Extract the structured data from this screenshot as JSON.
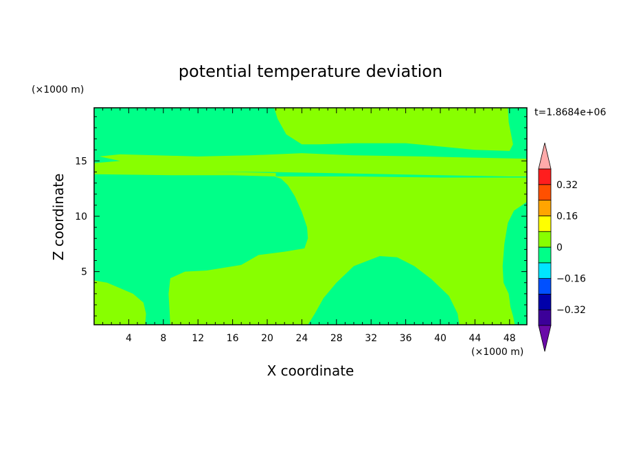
{
  "chart_data": {
    "type": "heatmap",
    "title": "potential temperature deviation",
    "xlabel": "X coordinate",
    "ylabel": "Z coordinate",
    "x_unit": "(×1000 m)",
    "y_unit": "(×1000 m)",
    "time_label": "t=1.8684e+06",
    "xlim": [
      0,
      50
    ],
    "ylim": [
      0.2,
      19.8
    ],
    "x_ticks": [
      4,
      8,
      12,
      16,
      20,
      24,
      28,
      32,
      36,
      40,
      44,
      48
    ],
    "y_ticks": [
      5,
      10,
      15
    ],
    "colorbar": {
      "levels": [
        -0.4,
        -0.32,
        -0.24,
        -0.16,
        -0.08,
        0,
        0.08,
        0.16,
        0.24,
        0.32,
        0.4
      ],
      "colors": [
        "#3c0099",
        "#0000aa",
        "#0050ff",
        "#00e5ff",
        "#00ff88",
        "#88ff00",
        "#ffff00",
        "#ffa500",
        "#ff5000",
        "#ff1e1e"
      ],
      "under_color": "#6a0aa8",
      "over_color": "#ffaaaa",
      "labels": [
        {
          "value": 0.32,
          "text": "0.32"
        },
        {
          "value": 0.16,
          "text": "0.16"
        },
        {
          "value": 0,
          "text": "0"
        },
        {
          "value": -0.16,
          "text": "−0.16"
        },
        {
          "value": -0.32,
          "text": "−0.32"
        }
      ]
    },
    "field": {
      "background_level": [
        -0.08,
        0
      ],
      "regions": [
        {
          "level": [
            0,
            0.08
          ],
          "outline": [
            [
              20.8,
              19.8
            ],
            [
              21.2,
              18.8
            ],
            [
              22.2,
              17.4
            ],
            [
              24,
              16.5
            ],
            [
              26,
              16.5
            ],
            [
              30,
              16.6
            ],
            [
              36,
              16.6
            ],
            [
              40,
              16.3
            ],
            [
              44,
              16
            ],
            [
              48,
              15.9
            ],
            [
              48.4,
              16.5
            ],
            [
              48.2,
              17.3
            ],
            [
              47.9,
              18.5
            ],
            [
              47.8,
              19.8
            ]
          ]
        },
        {
          "level": [
            0,
            0.08
          ],
          "outline": [
            [
              0,
              14.1
            ],
            [
              20,
              14
            ],
            [
              34,
              13.8
            ],
            [
              40,
              13.7
            ],
            [
              48,
              13.6
            ],
            [
              50,
              13.6
            ],
            [
              50,
              15.2
            ],
            [
              44,
              15.3
            ],
            [
              38,
              15.4
            ],
            [
              30,
              15.5
            ],
            [
              24,
              15.7
            ],
            [
              18,
              15.5
            ],
            [
              12,
              15.4
            ],
            [
              3,
              15.6
            ],
            [
              0.6,
              15.4
            ],
            [
              3,
              15
            ],
            [
              0,
              14.8
            ]
          ]
        },
        {
          "level": [
            0,
            0.08
          ],
          "outline": [
            [
              20.8,
              13.6
            ],
            [
              21.6,
              13.4
            ],
            [
              22.4,
              12.8
            ],
            [
              23.2,
              11.8
            ],
            [
              24,
              10.4
            ],
            [
              24.6,
              9
            ],
            [
              24.7,
              8
            ],
            [
              24.3,
              7.1
            ],
            [
              22,
              6.8
            ],
            [
              19,
              6.5
            ],
            [
              17,
              5.6
            ],
            [
              13,
              5.1
            ],
            [
              10.5,
              5
            ],
            [
              8.8,
              4.4
            ],
            [
              8.6,
              3
            ],
            [
              8.8,
              0.2
            ],
            [
              24.7,
              0.2
            ],
            [
              25.5,
              1.2
            ],
            [
              26.5,
              2.6
            ],
            [
              28,
              4
            ],
            [
              30,
              5.5
            ],
            [
              33,
              6.4
            ],
            [
              35,
              6.3
            ],
            [
              37,
              5.5
            ],
            [
              39,
              4.3
            ],
            [
              41,
              2.8
            ],
            [
              42,
              1.2
            ],
            [
              42.2,
              0.2
            ],
            [
              48.6,
              0.2
            ],
            [
              48.4,
              1
            ],
            [
              48.1,
              1.8
            ],
            [
              47.9,
              3
            ],
            [
              47.3,
              4
            ],
            [
              47.2,
              5.5
            ],
            [
              47.4,
              7.5
            ],
            [
              47.8,
              9.4
            ],
            [
              48.5,
              10.5
            ],
            [
              50,
              11.3
            ],
            [
              50,
              13.5
            ],
            [
              40,
              13.5
            ],
            [
              30,
              13.6
            ]
          ]
        },
        {
          "level": [
            0,
            0.08
          ],
          "outline": [
            [
              0,
              4.2
            ],
            [
              1.5,
              4
            ],
            [
              3,
              3.5
            ],
            [
              4.5,
              3
            ],
            [
              5.7,
              2.2
            ],
            [
              6,
              1.2
            ],
            [
              5.9,
              0.2
            ],
            [
              0,
              0.2
            ]
          ]
        },
        {
          "level": [
            0,
            0.08
          ],
          "outline": [
            [
              0,
              13.8
            ],
            [
              9,
              13.7
            ],
            [
              16,
              13.7
            ],
            [
              21,
              13.6
            ],
            [
              21,
              13.9
            ],
            [
              16,
              14
            ],
            [
              9,
              14.1
            ],
            [
              0,
              14.1
            ]
          ]
        }
      ]
    }
  }
}
